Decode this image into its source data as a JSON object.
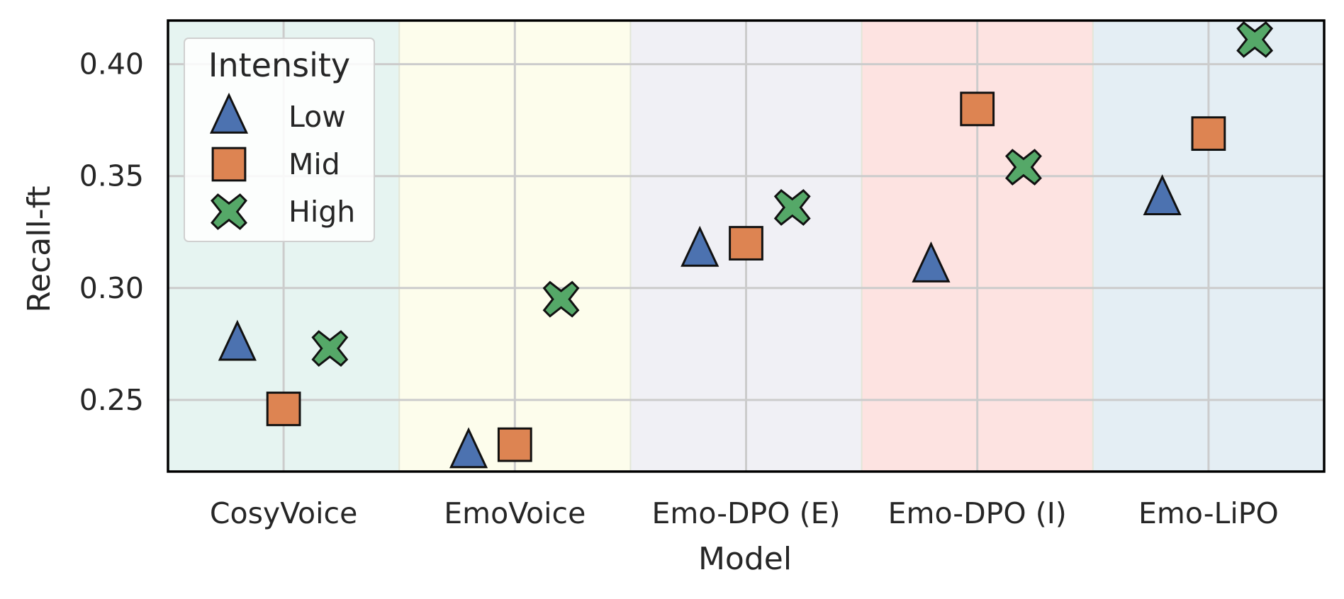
{
  "chart_data": {
    "type": "scatter",
    "xlabel": "Model",
    "ylabel": "Recall-ft",
    "categories": [
      "CosyVoice",
      "EmoVoice",
      "Emo-DPO (E)",
      "Emo-DPO (I)",
      "Emo-LiPO"
    ],
    "category_backgrounds": [
      "#e6f4f1",
      "#fdfdec",
      "#f0f0f5",
      "#fde3e1",
      "#e4eef4"
    ],
    "ylim": [
      0.218,
      0.4195
    ],
    "yticks": [
      0.25,
      0.3,
      0.35,
      0.4
    ],
    "ytick_labels": [
      "0.25",
      "0.30",
      "0.35",
      "0.40"
    ],
    "grid": true,
    "legend": {
      "title": "Intensity",
      "position": "top-left"
    },
    "series": [
      {
        "name": "Low",
        "marker": "triangle",
        "color": "#4c72b0",
        "values": [
          0.275,
          0.227,
          0.317,
          0.31,
          0.34
        ],
        "offset": -0.2
      },
      {
        "name": "Mid",
        "marker": "square",
        "color": "#dd8452",
        "values": [
          0.246,
          0.23,
          0.32,
          0.38,
          0.369
        ],
        "offset": 0.0
      },
      {
        "name": "High",
        "marker": "x",
        "color": "#55a868",
        "values": [
          0.273,
          0.295,
          0.336,
          0.354,
          0.411
        ],
        "offset": 0.2
      }
    ]
  }
}
